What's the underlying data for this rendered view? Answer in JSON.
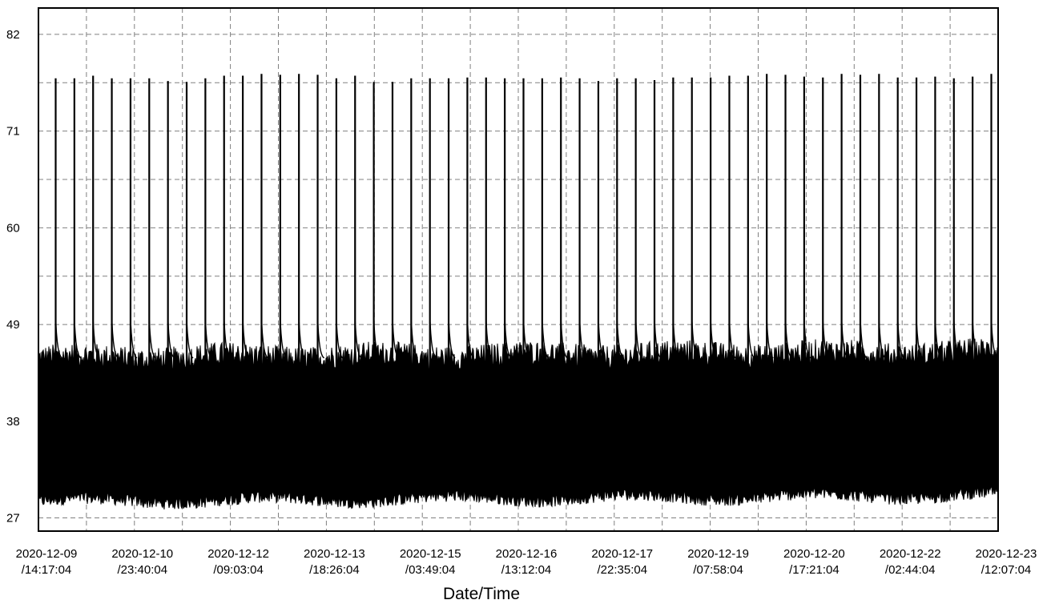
{
  "chart_data": {
    "type": "line",
    "title": "",
    "xlabel": "Date/Time",
    "ylabel": "",
    "ylim": [
      25.5,
      85
    ],
    "grid": true,
    "legend": "none",
    "line_color": "#000000",
    "x_ticks": [
      {
        "date": "2020-12-09",
        "time": "/14:17:04"
      },
      {
        "date": "2020-12-10",
        "time": "/23:40:04"
      },
      {
        "date": "2020-12-12",
        "time": "/09:03:04"
      },
      {
        "date": "2020-12-13",
        "time": "/18:26:04"
      },
      {
        "date": "2020-12-15",
        "time": "/03:49:04"
      },
      {
        "date": "2020-12-16",
        "time": "/13:12:04"
      },
      {
        "date": "2020-12-17",
        "time": "/22:35:04"
      },
      {
        "date": "2020-12-19",
        "time": "/07:58:04"
      },
      {
        "date": "2020-12-20",
        "time": "/17:21:04"
      },
      {
        "date": "2020-12-22",
        "time": "/02:44:04"
      },
      {
        "date": "2020-12-23",
        "time": "/12:07:04"
      }
    ],
    "y_ticks": [
      27,
      38,
      49,
      60,
      71,
      82
    ],
    "series": [
      {
        "typical_band": [
          29,
          45
        ],
        "spike_peaks": [
          77,
          77,
          77.3,
          77,
          77,
          77,
          76.7,
          76.6,
          77,
          77.3,
          77.3,
          77.5,
          77.4,
          77.5,
          77.4,
          77,
          77.3,
          76.6,
          76.6,
          77,
          77,
          77,
          77.1,
          77.1,
          77,
          77,
          77,
          77.1,
          77,
          76.7,
          77,
          77,
          76.8,
          77.1,
          77.1,
          77.1,
          77.3,
          77.3,
          77.5,
          77.4,
          77.2,
          77.1,
          77.5,
          77.4,
          77.5,
          77.1,
          77.1,
          77.2,
          77,
          77.2,
          77.5
        ]
      }
    ]
  }
}
